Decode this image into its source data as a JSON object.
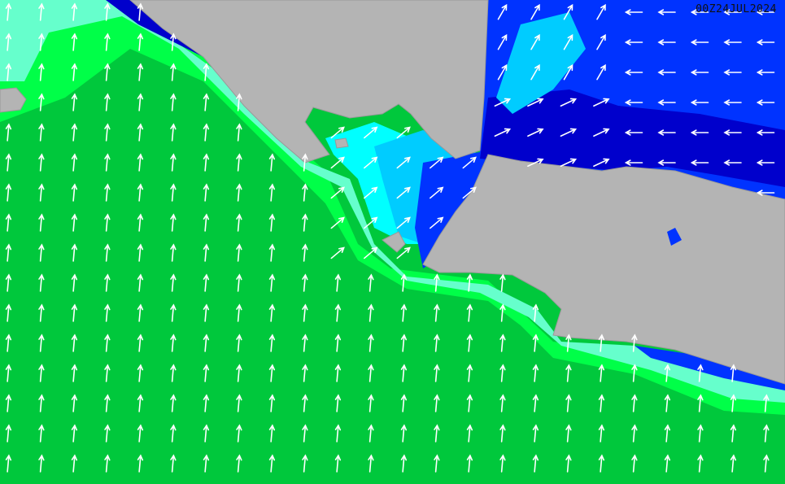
{
  "map": {
    "timestamp": "00Z24JUL2024",
    "colors": {
      "ocean_low": "#00c83c",
      "ocean_mid": "#00ff48",
      "aqua": "#66ffcc",
      "cyan": "#00ffff",
      "light_blue": "#00ccff",
      "blue": "#0033ff",
      "dark_blue": "#0000cc",
      "land": "#b4b4b4",
      "arrow": "#ffffff"
    },
    "icons": [
      "wave-direction-arrow-icon"
    ]
  }
}
